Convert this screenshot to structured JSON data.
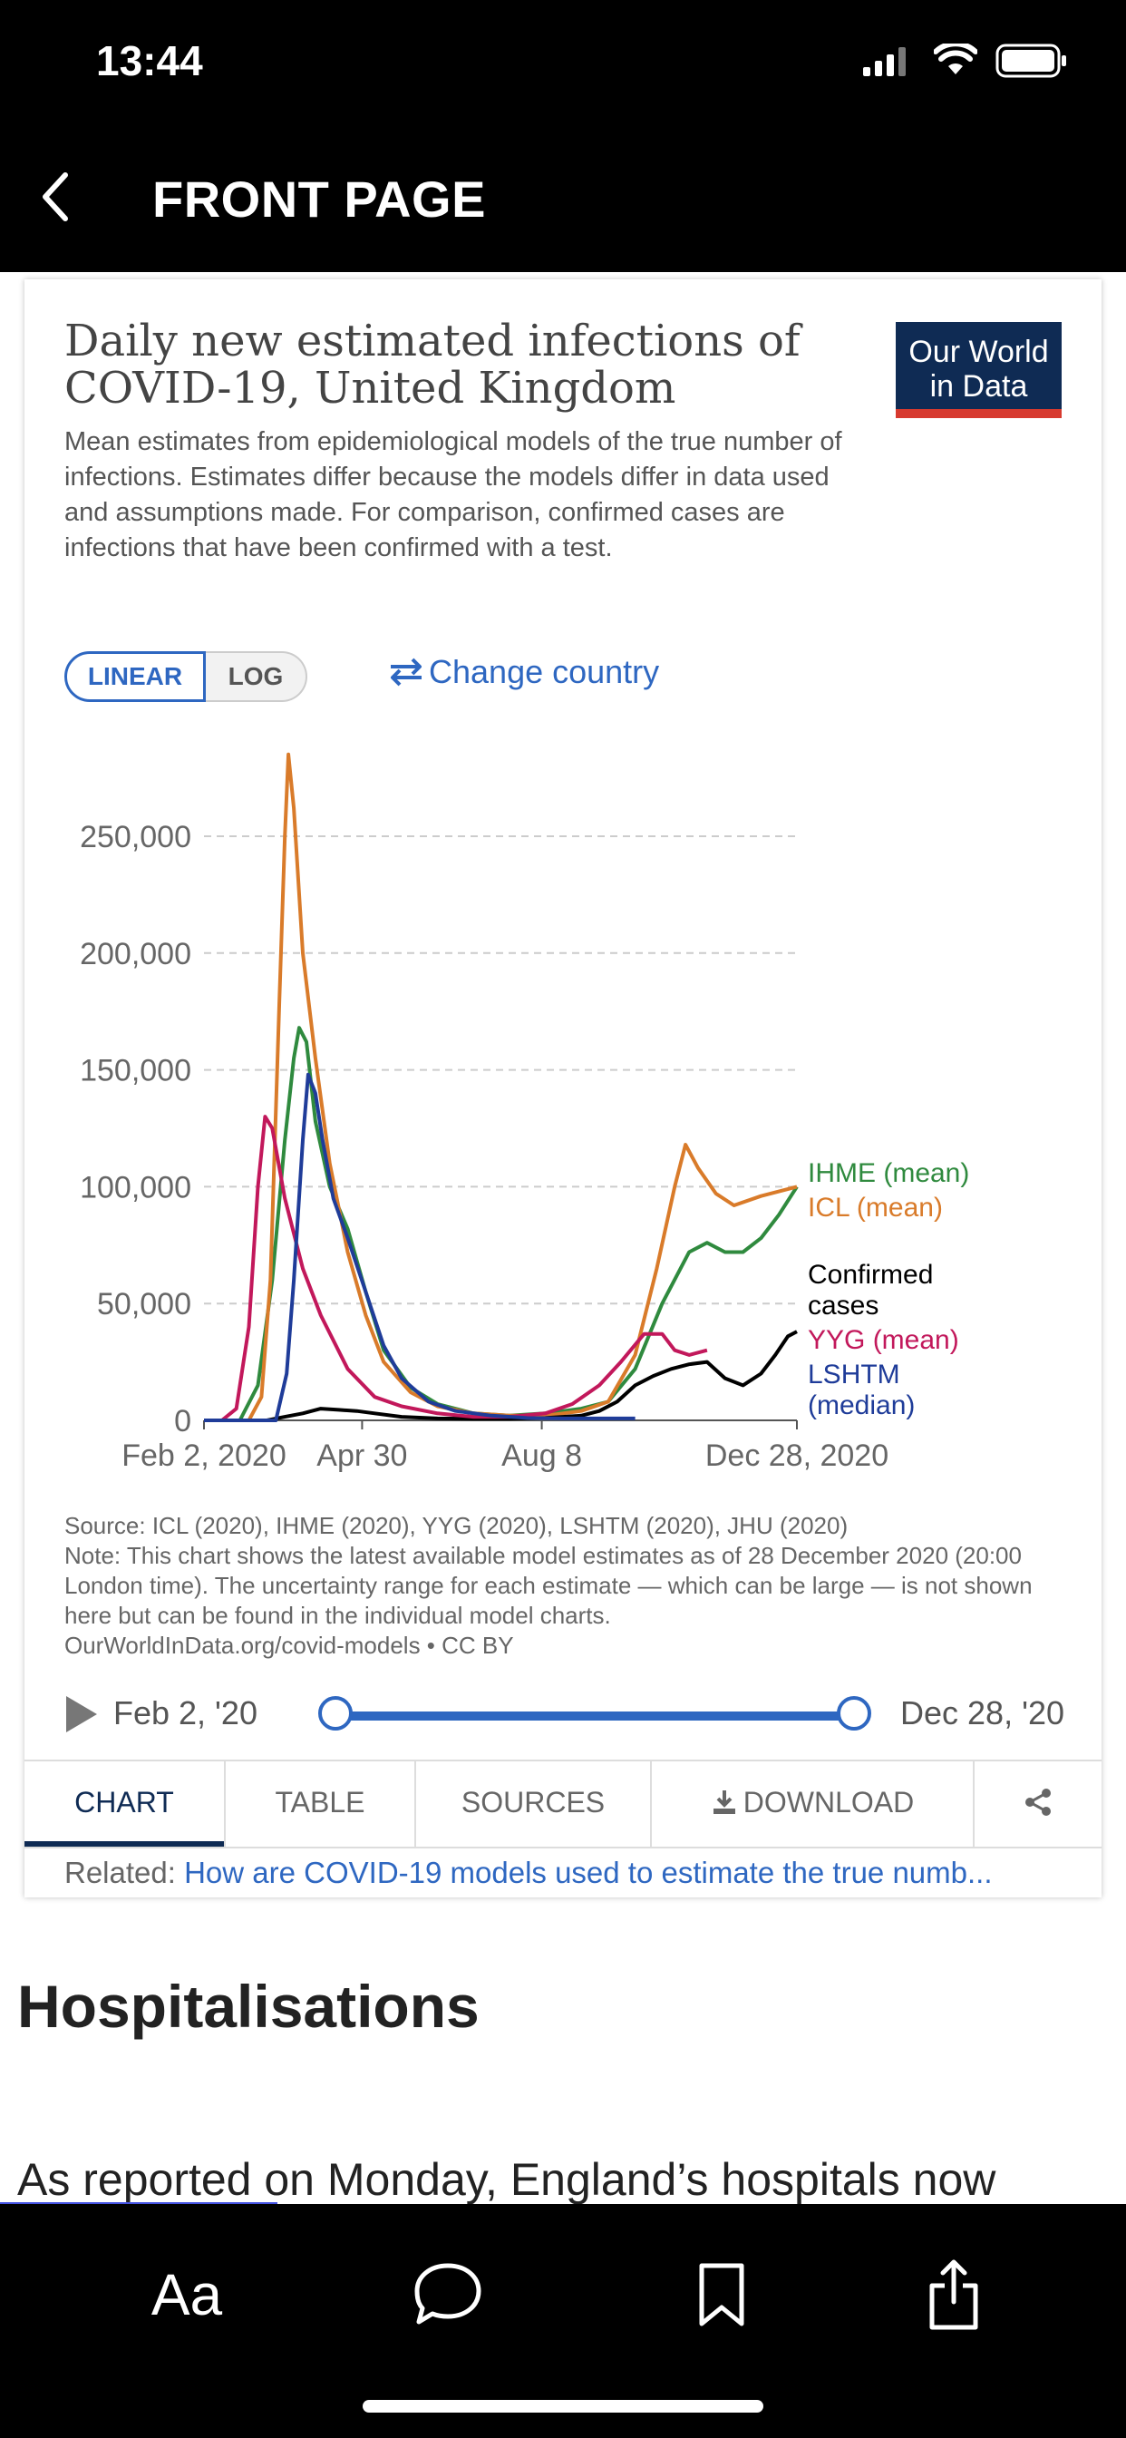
{
  "status_bar": {
    "time": "13:44"
  },
  "nav": {
    "title": "FRONT PAGE"
  },
  "card": {
    "title": "Daily new estimated infections of COVID-19, United Kingdom",
    "logo_line1": "Our World",
    "logo_line2": "in Data",
    "subtitle": "Mean estimates from epidemiological models of the true number of infections. Estimates differ because the models differ in data used and assumptions made. For comparison, confirmed cases are infections that have been confirmed with a test.",
    "toggle_linear": "LINEAR",
    "toggle_log": "LOG",
    "change_country": "Change country",
    "source_note": "Source: ICL (2020), IHME (2020), YYG (2020), LSHTM (2020), JHU (2020)\nNote: This chart shows the latest available model estimates as of 28 December 2020 (20:00 London time). The uncertainty range for each estimate — which can be large — is not shown here but can be found in the individual model charts.\nOurWorldInData.org/covid-models • CC BY",
    "timeline_start": "Feb 2, '20",
    "timeline_end": "Dec 28, '20",
    "tabs": [
      "CHART",
      "TABLE",
      "SOURCES",
      "DOWNLOAD",
      ""
    ],
    "related_label": "Related:",
    "related_link": "How are COVID-19 models used to estimate the true numb..."
  },
  "chart_data": {
    "type": "line",
    "title": "Daily new estimated infections of COVID-19, United Kingdom",
    "x_ticks": [
      "Feb 2, 2020",
      "Apr 30",
      "Aug 8",
      "Dec 28, 2020"
    ],
    "x_tick_days": [
      0,
      88,
      188,
      330
    ],
    "y_ticks": [
      "0",
      "50,000",
      "100,000",
      "150,000",
      "200,000",
      "250,000"
    ],
    "y_tick_values": [
      0,
      50000,
      100000,
      150000,
      200000,
      250000
    ],
    "ylim": [
      0,
      285000
    ],
    "xlim": [
      0,
      330
    ],
    "legend_position": "right",
    "series": [
      {
        "name": "IHME (mean)",
        "color": "#2f8a3e",
        "label_lines": [
          "IHME (mean)"
        ],
        "points": [
          [
            0,
            0
          ],
          [
            20,
            0
          ],
          [
            30,
            15000
          ],
          [
            38,
            60000
          ],
          [
            45,
            120000
          ],
          [
            50,
            155000
          ],
          [
            53,
            168000
          ],
          [
            57,
            162000
          ],
          [
            62,
            128000
          ],
          [
            70,
            100000
          ],
          [
            80,
            82000
          ],
          [
            90,
            55000
          ],
          [
            100,
            30000
          ],
          [
            115,
            14000
          ],
          [
            130,
            7000
          ],
          [
            150,
            3000
          ],
          [
            170,
            2000
          ],
          [
            190,
            3000
          ],
          [
            210,
            5000
          ],
          [
            225,
            8000
          ],
          [
            240,
            22000
          ],
          [
            255,
            50000
          ],
          [
            270,
            72000
          ],
          [
            280,
            76000
          ],
          [
            290,
            72000
          ],
          [
            300,
            72000
          ],
          [
            310,
            78000
          ],
          [
            320,
            88000
          ],
          [
            330,
            100000
          ]
        ]
      },
      {
        "name": "ICL (mean)",
        "color": "#d97b2a",
        "label_lines": [
          "ICL (mean)"
        ],
        "points": [
          [
            0,
            0
          ],
          [
            25,
            0
          ],
          [
            32,
            10000
          ],
          [
            37,
            60000
          ],
          [
            42,
            180000
          ],
          [
            45,
            250000
          ],
          [
            47,
            285000
          ],
          [
            50,
            262000
          ],
          [
            55,
            200000
          ],
          [
            62,
            155000
          ],
          [
            70,
            110000
          ],
          [
            80,
            72000
          ],
          [
            90,
            45000
          ],
          [
            100,
            25000
          ],
          [
            115,
            12000
          ],
          [
            130,
            6000
          ],
          [
            150,
            3000
          ],
          [
            170,
            2000
          ],
          [
            190,
            2000
          ],
          [
            210,
            4000
          ],
          [
            225,
            8000
          ],
          [
            240,
            28000
          ],
          [
            252,
            65000
          ],
          [
            262,
            100000
          ],
          [
            268,
            118000
          ],
          [
            275,
            108000
          ],
          [
            285,
            97000
          ],
          [
            295,
            92000
          ],
          [
            310,
            96000
          ],
          [
            330,
            100000
          ]
        ]
      },
      {
        "name": "Confirmed cases",
        "color": "#000000",
        "label_lines": [
          "Confirmed",
          "cases"
        ],
        "points": [
          [
            0,
            0
          ],
          [
            35,
            0
          ],
          [
            45,
            1500
          ],
          [
            55,
            3000
          ],
          [
            65,
            5000
          ],
          [
            75,
            4500
          ],
          [
            85,
            4000
          ],
          [
            95,
            3000
          ],
          [
            110,
            1500
          ],
          [
            130,
            800
          ],
          [
            150,
            700
          ],
          [
            170,
            700
          ],
          [
            190,
            1000
          ],
          [
            210,
            2000
          ],
          [
            220,
            4000
          ],
          [
            230,
            8000
          ],
          [
            240,
            15000
          ],
          [
            250,
            19000
          ],
          [
            260,
            22000
          ],
          [
            270,
            24000
          ],
          [
            280,
            25000
          ],
          [
            290,
            18000
          ],
          [
            300,
            15000
          ],
          [
            310,
            20000
          ],
          [
            318,
            28000
          ],
          [
            325,
            36000
          ],
          [
            330,
            38000
          ]
        ]
      },
      {
        "name": "YYG (mean)",
        "color": "#c2185b",
        "label_lines": [
          "YYG (mean)"
        ],
        "points": [
          [
            0,
            0
          ],
          [
            10,
            0
          ],
          [
            18,
            5000
          ],
          [
            25,
            40000
          ],
          [
            30,
            100000
          ],
          [
            34,
            130000
          ],
          [
            38,
            125000
          ],
          [
            45,
            95000
          ],
          [
            55,
            65000
          ],
          [
            65,
            45000
          ],
          [
            80,
            22000
          ],
          [
            95,
            10000
          ],
          [
            110,
            6000
          ],
          [
            130,
            3000
          ],
          [
            150,
            1500
          ],
          [
            170,
            1500
          ],
          [
            190,
            3000
          ],
          [
            205,
            7000
          ],
          [
            220,
            15000
          ],
          [
            232,
            25000
          ],
          [
            245,
            37000
          ],
          [
            255,
            37000
          ],
          [
            262,
            30000
          ],
          [
            270,
            28000
          ],
          [
            280,
            30000
          ]
        ]
      },
      {
        "name": "LSHTM (median)",
        "color": "#1f3c99",
        "label_lines": [
          "LSHTM",
          "(median)"
        ],
        "points": [
          [
            0,
            0
          ],
          [
            40,
            0
          ],
          [
            46,
            20000
          ],
          [
            50,
            60000
          ],
          [
            55,
            120000
          ],
          [
            58,
            148000
          ],
          [
            62,
            140000
          ],
          [
            66,
            120000
          ],
          [
            72,
            95000
          ],
          [
            80,
            78000
          ],
          [
            90,
            55000
          ],
          [
            100,
            32000
          ],
          [
            110,
            18000
          ],
          [
            125,
            8000
          ],
          [
            140,
            4000
          ],
          [
            160,
            2000
          ],
          [
            180,
            1000
          ],
          [
            200,
            800
          ],
          [
            220,
            800
          ],
          [
            240,
            800
          ]
        ]
      }
    ]
  }
}
